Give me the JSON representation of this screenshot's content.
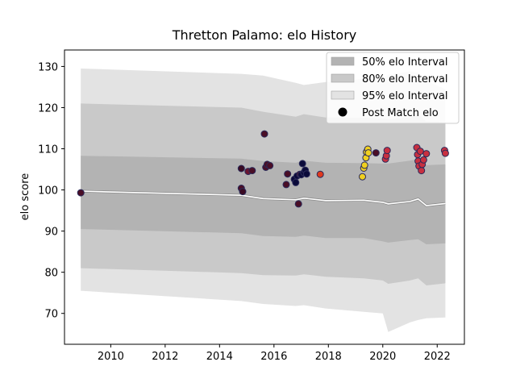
{
  "chart_data": {
    "type": "scatter",
    "title": "Thretton Palamo: elo History",
    "xlabel": "",
    "ylabel": "elo score",
    "xlim": [
      2008.3,
      2023.0
    ],
    "ylim": [
      62.5,
      134.0
    ],
    "x_ticks": [
      2010,
      2012,
      2014,
      2016,
      2018,
      2020,
      2022
    ],
    "y_ticks": [
      70,
      80,
      90,
      100,
      110,
      120,
      130
    ],
    "grid": false,
    "legend_position": "top-right",
    "legend": [
      "50% elo Interval",
      "80% elo Interval",
      "95% elo Interval",
      "Post Match elo"
    ],
    "colors": {
      "band_50": "#b3b3b3",
      "band_80": "#c9c9c9",
      "band_95": "#e3e3e3",
      "mean_line_shadow": "#8c8c8c",
      "mean_line": "#ffffff",
      "marker_edge": "#2a2a5a"
    },
    "bands": {
      "x": [
        2008.9,
        2014.8,
        2015.6,
        2016.8,
        2017.1,
        2017.9,
        2019.3,
        2020.0,
        2020.2,
        2021.0,
        2021.3,
        2021.6,
        2022.3
      ],
      "mean": [
        99.7,
        98.7,
        97.9,
        97.6,
        98.0,
        97.4,
        97.5,
        97.0,
        96.6,
        97.2,
        97.8,
        96.2,
        96.7
      ],
      "p50_low": [
        90.5,
        89.5,
        88.8,
        88.6,
        88.9,
        88.3,
        88.3,
        87.5,
        87.2,
        87.8,
        88.0,
        86.8,
        87.0
      ],
      "p50_high": [
        108.3,
        107.6,
        107.0,
        106.6,
        107.1,
        106.6,
        106.5,
        106.4,
        106.4,
        107.1,
        107.5,
        106.0,
        106.2
      ],
      "p80_low": [
        81.0,
        79.8,
        79.3,
        79.2,
        79.5,
        78.9,
        78.5,
        78.0,
        77.2,
        78.0,
        78.5,
        76.8,
        77.3
      ],
      "p80_high": [
        121.0,
        120.0,
        119.0,
        117.8,
        118.4,
        117.6,
        117.5,
        117.4,
        117.2,
        117.6,
        118.5,
        116.6,
        116.4
      ],
      "p95_low": [
        75.5,
        73.0,
        72.3,
        71.8,
        72.0,
        71.2,
        70.4,
        70.0,
        65.5,
        67.8,
        68.4,
        68.8,
        69.0
      ],
      "p95_high": [
        129.5,
        128.2,
        127.8,
        126.0,
        125.5,
        126.2,
        127.0,
        126.8,
        128.0,
        128.8,
        128.5,
        126.5,
        124.5
      ]
    },
    "points": [
      {
        "x": 2008.9,
        "y": 99.3,
        "color": "#4a0e26"
      },
      {
        "x": 2014.8,
        "y": 105.2,
        "color": "#3a0a22"
      },
      {
        "x": 2014.8,
        "y": 100.4,
        "color": "#4a0e26"
      },
      {
        "x": 2014.85,
        "y": 99.6,
        "color": "#3a0a22"
      },
      {
        "x": 2015.05,
        "y": 104.5,
        "color": "#6a1430"
      },
      {
        "x": 2015.2,
        "y": 104.7,
        "color": "#4a0e26"
      },
      {
        "x": 2015.65,
        "y": 113.6,
        "color": "#4a0e26"
      },
      {
        "x": 2015.7,
        "y": 105.5,
        "color": "#4a0e26"
      },
      {
        "x": 2015.75,
        "y": 106.2,
        "color": "#4a0e26"
      },
      {
        "x": 2015.85,
        "y": 105.9,
        "color": "#4a0e26"
      },
      {
        "x": 2016.45,
        "y": 101.3,
        "color": "#4a0e26"
      },
      {
        "x": 2016.5,
        "y": 103.9,
        "color": "#4a0e26"
      },
      {
        "x": 2016.75,
        "y": 102.6,
        "color": "#0a0a3a"
      },
      {
        "x": 2016.8,
        "y": 101.8,
        "color": "#0a0a3a"
      },
      {
        "x": 2016.85,
        "y": 103.4,
        "color": "#0a0a3a"
      },
      {
        "x": 2016.9,
        "y": 96.6,
        "color": "#4a0e26"
      },
      {
        "x": 2016.95,
        "y": 103.8,
        "color": "#4a0e26"
      },
      {
        "x": 2017.0,
        "y": 103.7,
        "color": "#0a0a3a"
      },
      {
        "x": 2017.05,
        "y": 106.4,
        "color": "#0a0a3a"
      },
      {
        "x": 2017.1,
        "y": 104.2,
        "color": "#0a0a3a"
      },
      {
        "x": 2017.15,
        "y": 104.8,
        "color": "#0a0a3a"
      },
      {
        "x": 2017.2,
        "y": 103.9,
        "color": "#0a0a3a"
      },
      {
        "x": 2017.7,
        "y": 103.8,
        "color": "#e03a1e"
      },
      {
        "x": 2019.25,
        "y": 103.2,
        "color": "#f0d020"
      },
      {
        "x": 2019.3,
        "y": 105.3,
        "color": "#f0d020"
      },
      {
        "x": 2019.33,
        "y": 106.0,
        "color": "#f0d020"
      },
      {
        "x": 2019.38,
        "y": 107.8,
        "color": "#f0d020"
      },
      {
        "x": 2019.4,
        "y": 109.2,
        "color": "#f0d020"
      },
      {
        "x": 2019.45,
        "y": 109.9,
        "color": "#f0d020"
      },
      {
        "x": 2019.47,
        "y": 109.0,
        "color": "#f0d020"
      },
      {
        "x": 2019.75,
        "y": 109.0,
        "color": "#4a0e26"
      },
      {
        "x": 2020.1,
        "y": 107.5,
        "color": "#c83040"
      },
      {
        "x": 2020.13,
        "y": 108.3,
        "color": "#c83040"
      },
      {
        "x": 2020.16,
        "y": 109.6,
        "color": "#c83040"
      },
      {
        "x": 2021.25,
        "y": 110.3,
        "color": "#c83040"
      },
      {
        "x": 2021.28,
        "y": 108.6,
        "color": "#c83040"
      },
      {
        "x": 2021.3,
        "y": 107.0,
        "color": "#c83040"
      },
      {
        "x": 2021.33,
        "y": 105.8,
        "color": "#c83040"
      },
      {
        "x": 2021.38,
        "y": 109.4,
        "color": "#c83040"
      },
      {
        "x": 2021.42,
        "y": 104.7,
        "color": "#c83040"
      },
      {
        "x": 2021.45,
        "y": 106.2,
        "color": "#c83040"
      },
      {
        "x": 2021.5,
        "y": 107.3,
        "color": "#c83040"
      },
      {
        "x": 2021.6,
        "y": 108.8,
        "color": "#c83040"
      },
      {
        "x": 2022.27,
        "y": 109.6,
        "color": "#c83040"
      },
      {
        "x": 2022.3,
        "y": 108.9,
        "color": "#c83040"
      }
    ]
  }
}
